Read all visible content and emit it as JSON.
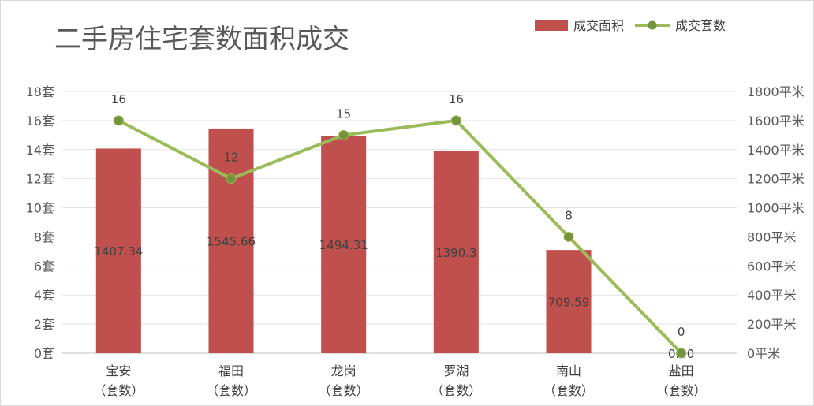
{
  "chart_data": {
    "type": "bar",
    "title": "二手房住宅套数面积成交",
    "categories": [
      "宝安",
      "福田",
      "龙岗",
      "罗湖",
      "南山",
      "盐田"
    ],
    "category_sublabel": "（套数）",
    "series": [
      {
        "name": "成交面积",
        "kind": "bar",
        "axis": "right",
        "color": "#c0504d",
        "values": [
          1407.34,
          1545.66,
          1494.31,
          1390.3,
          709.59,
          0
        ],
        "data_labels": [
          "1407.34",
          "1545.66",
          "1494.31",
          "1390.3",
          "709.59",
          "0.00"
        ]
      },
      {
        "name": "成交套数",
        "kind": "line",
        "axis": "left",
        "color": "#9bbb59",
        "values": [
          16,
          12,
          15,
          16,
          8,
          0
        ],
        "data_labels": [
          "16",
          "12",
          "15",
          "16",
          "8",
          "0"
        ]
      }
    ],
    "y_left": {
      "ylim": [
        0,
        18
      ],
      "ticks": [
        "0套",
        "2套",
        "4套",
        "6套",
        "8套",
        "10套",
        "12套",
        "14套",
        "16套",
        "18套"
      ]
    },
    "y_right": {
      "ylim": [
        0,
        1800
      ],
      "ticks": [
        "0平米",
        "200平米",
        "400平米",
        "600平米",
        "800平米",
        "1000平米",
        "1200平米",
        "1400平米",
        "1600平米",
        "1800平米"
      ]
    },
    "grid": true,
    "legend_position": "top-right"
  }
}
